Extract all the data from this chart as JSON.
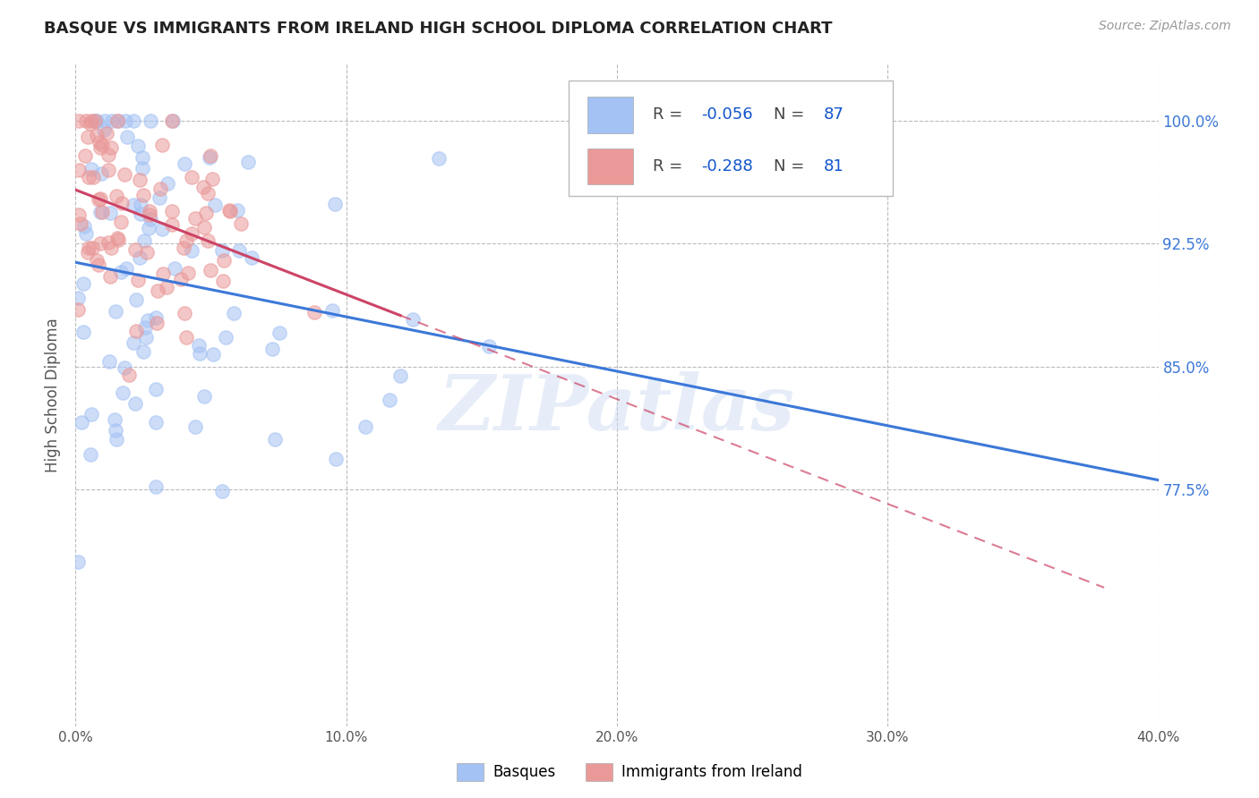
{
  "title": "BASQUE VS IMMIGRANTS FROM IRELAND HIGH SCHOOL DIPLOMA CORRELATION CHART",
  "source_text": "Source: ZipAtlas.com",
  "ylabel": "High School Diploma",
  "xlim": [
    0.0,
    0.4
  ],
  "ylim": [
    0.63,
    1.035
  ],
  "yticks": [
    0.775,
    0.85,
    0.925,
    1.0
  ],
  "ytick_labels": [
    "77.5%",
    "85.0%",
    "92.5%",
    "100.0%"
  ],
  "xticks": [
    0.0,
    0.1,
    0.2,
    0.3,
    0.4
  ],
  "xtick_labels": [
    "0.0%",
    "10.0%",
    "20.0%",
    "30.0%",
    "40.0%"
  ],
  "basque_R": -0.056,
  "basque_N": 87,
  "ireland_R": -0.288,
  "ireland_N": 81,
  "basque_color": "#a4c2f4",
  "ireland_color": "#ea9999",
  "basque_line_color": "#3c78d8",
  "ireland_line_color": "#cc4466",
  "watermark": "ZIPatlas",
  "background_color": "#ffffff",
  "grid_color": "#bbbbbb",
  "legend_labels": [
    "Basques",
    "Immigrants from Ireland"
  ],
  "legend_R_color": "#1155cc",
  "legend_N_color": "#1155cc",
  "legend_label_color": "#444444",
  "title_color": "#222222",
  "title_fontsize": 13,
  "ylabel_color": "#555555",
  "ytick_color": "#3c78d8",
  "xtick_color": "#555555"
}
